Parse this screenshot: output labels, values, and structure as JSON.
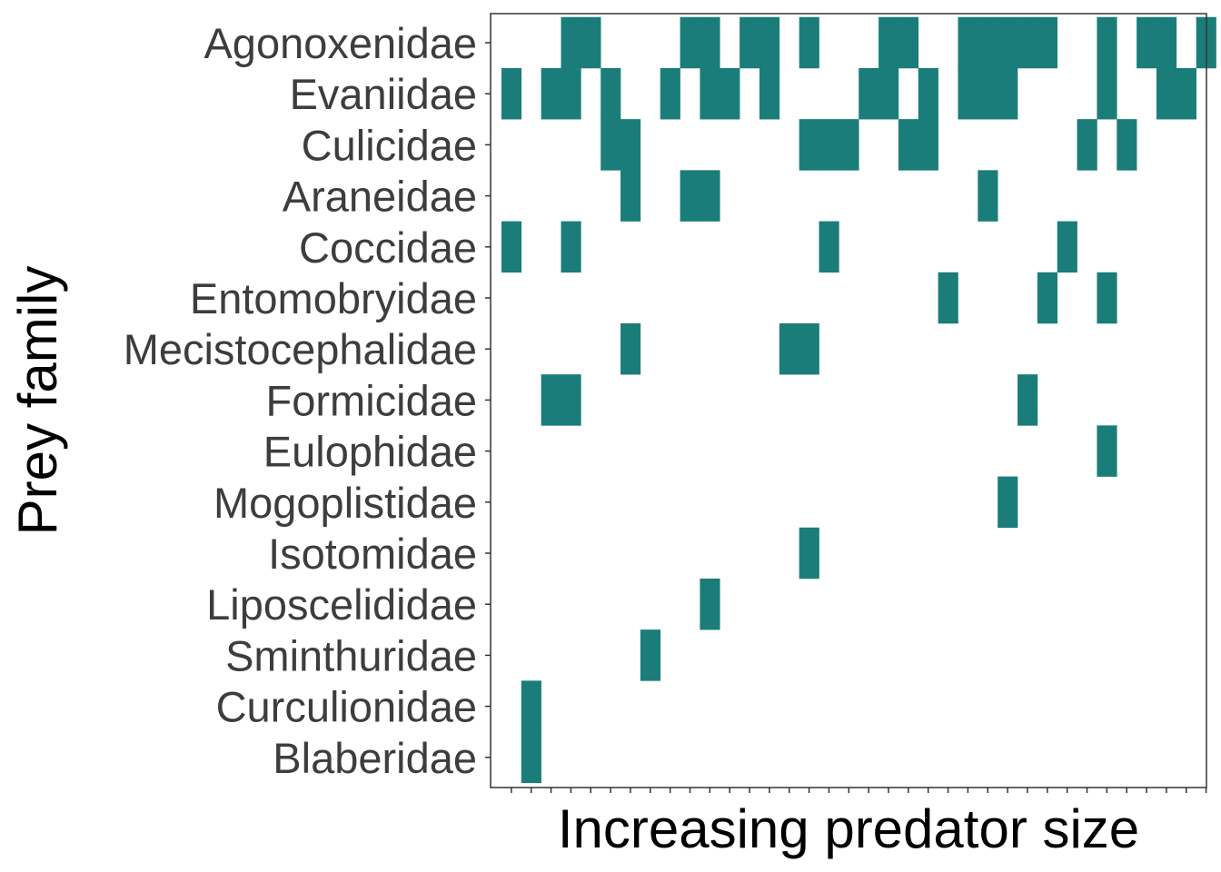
{
  "chart_data": {
    "type": "heatmap",
    "xlabel": "Increasing predator size",
    "ylabel": "Prey family",
    "x_categories_count": 36,
    "x_tick_labels_shown": false,
    "y_categories": [
      "Agonoxenidae",
      "Evaniidae",
      "Culicidae",
      "Araneidae",
      "Coccidae",
      "Entomobryidae",
      "Mecistocephalidae",
      "Formicidae",
      "Eulophidae",
      "Mogoplistidae",
      "Isotomidae",
      "Liposcelididae",
      "Sminthuridae",
      "Curculionidae",
      "Blaberidae"
    ],
    "presence": {
      "Agonoxenidae": [
        4,
        5,
        10,
        11,
        13,
        14,
        16,
        20,
        21,
        24,
        25,
        26,
        27,
        28,
        31,
        33,
        34,
        36
      ],
      "Evaniidae": [
        1,
        3,
        4,
        6,
        9,
        11,
        12,
        14,
        19,
        20,
        22,
        24,
        25,
        26,
        31,
        34,
        35
      ],
      "Culicidae": [
        6,
        7,
        16,
        17,
        18,
        21,
        22,
        30,
        32
      ],
      "Araneidae": [
        7,
        10,
        11,
        25
      ],
      "Coccidae": [
        1,
        4,
        17,
        29
      ],
      "Entomobryidae": [
        23,
        28,
        31
      ],
      "Mecistocephalidae": [
        7,
        15,
        16
      ],
      "Formicidae": [
        3,
        4,
        27
      ],
      "Eulophidae": [
        31
      ],
      "Mogoplistidae": [
        26
      ],
      "Isotomidae": [
        16
      ],
      "Liposcelididae": [
        11
      ],
      "Sminthuridae": [
        8
      ],
      "Curculionidae": [
        2
      ],
      "Blaberidae": [
        2
      ]
    },
    "fill_color": "#1b7d7a",
    "background": "#ffffff",
    "grid": false,
    "legend": "none"
  }
}
